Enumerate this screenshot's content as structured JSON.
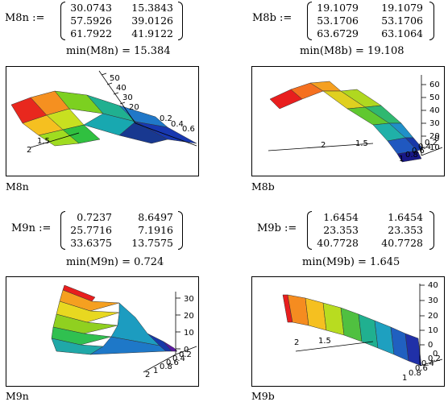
{
  "blocks": [
    {
      "label": "M8n :=",
      "matrix": [
        [
          "30.0743",
          "15.3843"
        ],
        [
          "57.5926",
          "39.0126"
        ],
        [
          "61.7922",
          "41.9122"
        ]
      ],
      "min_text": "min(M8n) = 15.384",
      "caption": "M8n",
      "ticks": [
        "50",
        "40",
        "30",
        "20",
        "0.2",
        "0.4",
        "0.6",
        "1.5",
        "2"
      ]
    },
    {
      "label": "M8b :=",
      "matrix": [
        [
          "19.1079",
          "19.1079"
        ],
        [
          "53.1706",
          "53.1706"
        ],
        [
          "63.6729",
          "63.1064"
        ]
      ],
      "min_text": "min(M8b) = 19.108",
      "caption": "M8b",
      "ticks": [
        "60",
        "50",
        "40",
        "30",
        "20",
        "10",
        "2",
        "1.5",
        "0",
        "0.2",
        "0.4",
        "0.6",
        "0.8",
        "1"
      ]
    },
    {
      "label": "M9n :=",
      "matrix": [
        [
          "0.7237",
          "8.6497"
        ],
        [
          "25.7716",
          "7.1916"
        ],
        [
          "33.6375",
          "13.7575"
        ]
      ],
      "min_text": "min(M9n) = 0.724",
      "caption": "M9n",
      "ticks": [
        "30",
        "20",
        "10",
        "0",
        "0.2",
        "0.4",
        "0.6",
        "0.8",
        "1",
        "2"
      ]
    },
    {
      "label": "M9b :=",
      "matrix": [
        [
          "1.6454",
          "1.6454"
        ],
        [
          "23.353",
          "23.353"
        ],
        [
          "40.7728",
          "40.7728"
        ]
      ],
      "min_text": "min(M9b) = 1.645",
      "caption": "M9b",
      "ticks": [
        "40",
        "30",
        "20",
        "10",
        "0",
        "2",
        "1.5",
        "0",
        "0.2",
        "0.4",
        "0.6",
        "0.8",
        "1"
      ]
    }
  ]
}
